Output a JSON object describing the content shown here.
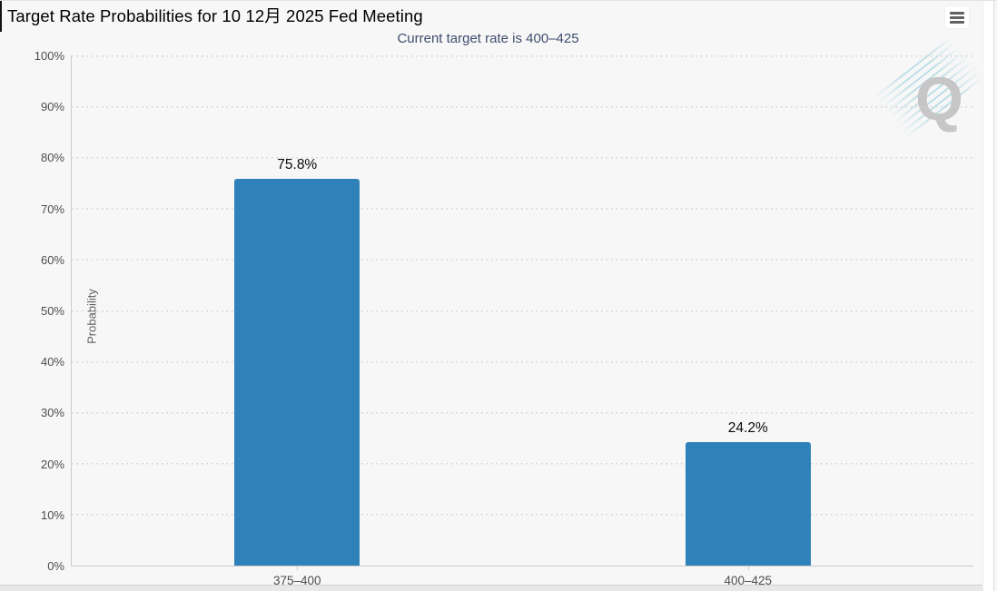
{
  "header": {
    "title": "Target Rate Probabilities for 10 12月 2025 Fed Meeting",
    "menu_icon": "hamburger-icon"
  },
  "watermark": {
    "letter": "Q"
  },
  "chart_data": {
    "type": "bar",
    "title": "Target Rate Probabilities for 10 12月 2025 Fed Meeting",
    "subtitle": "Current target rate is 400–425",
    "categories": [
      "375–400",
      "400–425"
    ],
    "values": [
      75.8,
      24.2
    ],
    "value_labels": [
      "75.8%",
      "24.2%"
    ],
    "xlabel": "",
    "ylabel": "Probability",
    "ylim": [
      0,
      100
    ],
    "ytick_step": 10,
    "ytick_labels": [
      "0%",
      "10%",
      "20%",
      "30%",
      "40%",
      "50%",
      "60%",
      "70%",
      "80%",
      "90%",
      "100%"
    ],
    "grid": true,
    "gridline_style": "dotted",
    "legend": "none",
    "bar_color": "#2f81b9",
    "background_color": "#f7f7f7",
    "subtitle_color": "#3f4d6d",
    "label_color": "#0a0a0a"
  }
}
